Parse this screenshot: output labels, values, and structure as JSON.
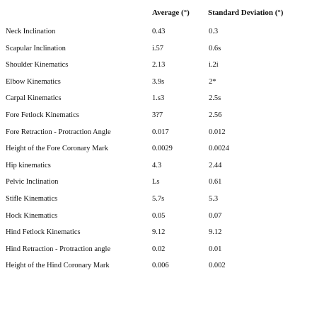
{
  "table": {
    "header": [
      "Average (°)",
      "Standard Deviation (°)"
    ],
    "rows": [
      [
        "Neck Inclination",
        "0.43",
        "0.3"
      ],
      [
        "Scapular Inclination",
        "i.57",
        "0.6s"
      ],
      [
        "Shoulder Kinematics",
        "2.13",
        "i.2i"
      ],
      [
        "Elbow Kinematics",
        "3.9s",
        "2*"
      ],
      [
        "Carpal Kinematics",
        "1.s3",
        "2.5s"
      ],
      [
        "Fore Fetlock Kinematics",
        "3?7",
        "2.56"
      ],
      [
        "Fore Retraction - Protraction Angle",
        "0.017",
        "0.012"
      ],
      [
        "Height of the Fore Coronary Mark",
        "0.0029",
        "0.0024"
      ],
      [
        "Hip kinematics",
        "4.3",
        "2.44"
      ],
      [
        "Pelvic Inclination",
        "Ls",
        "0.61"
      ],
      [
        "Stifle Kinematics",
        "5.7s",
        "5.3"
      ],
      [
        "Hock Kinematics",
        "0.05",
        "0.07"
      ],
      [
        "Hind Fetlock Kinematics",
        "9.12",
        "9.12"
      ],
      [
        "Hind Retraction - Protraction angle",
        "0.02",
        "0.01"
      ],
      [
        "Height of the Hind Coronary Mark",
        "0.006",
        "0.002"
      ]
    ]
  }
}
